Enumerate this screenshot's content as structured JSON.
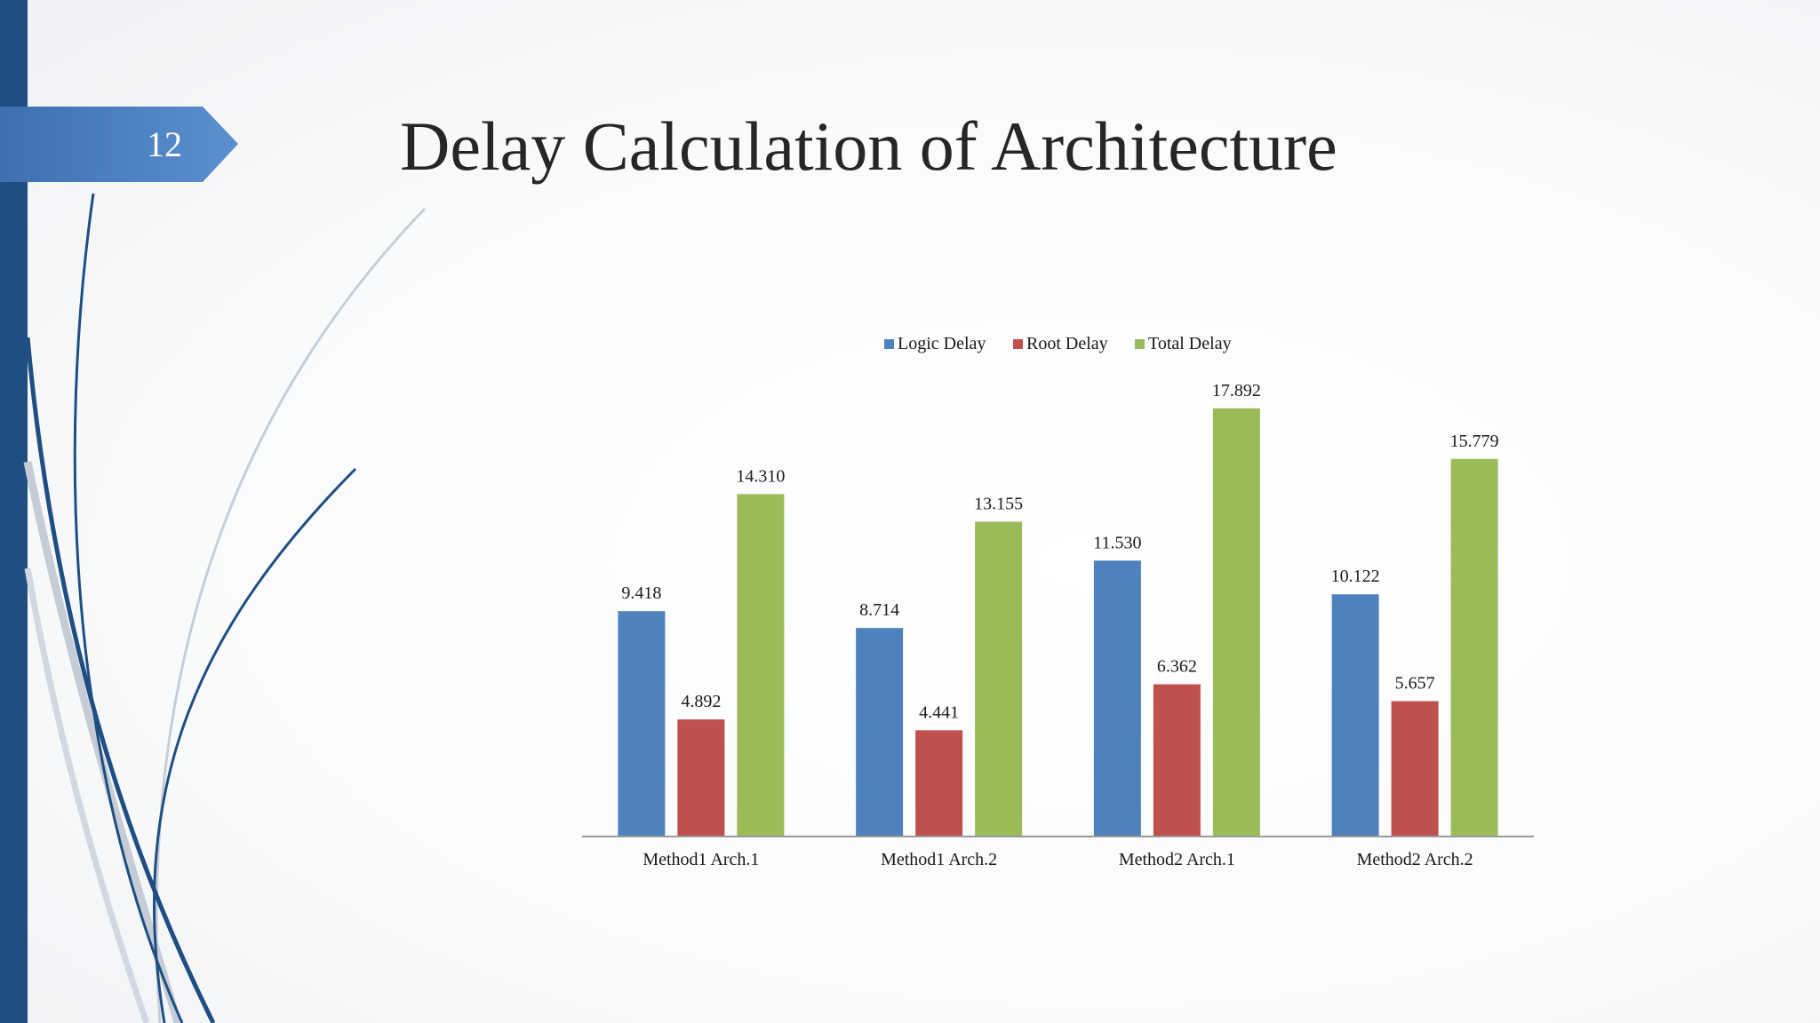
{
  "slide": {
    "number": "12",
    "title": "Delay Calculation of Architecture"
  },
  "colors": {
    "left_bar": "#1f4e82",
    "tab": "#4f81bd",
    "swoosh_dark": "#1f4e82",
    "swoosh_light": "#c5ccd6"
  },
  "chart_data": {
    "type": "bar",
    "categories": [
      "Method1 Arch.1",
      "Method1 Arch.2",
      "Method2 Arch.1",
      "Method2 Arch.2"
    ],
    "series": [
      {
        "name": "Logic Delay",
        "color": "#4f81bd",
        "values": [
          9.418,
          8.714,
          11.53,
          10.122
        ],
        "labels": [
          "9.418",
          "8.714",
          "11.530",
          "10.122"
        ]
      },
      {
        "name": "Root Delay",
        "color": "#c0504d",
        "values": [
          4.892,
          4.441,
          6.362,
          5.657
        ],
        "labels": [
          "4.892",
          "4.441",
          "6.362",
          "5.657"
        ]
      },
      {
        "name": "Total Delay",
        "color": "#9bbb59",
        "values": [
          14.31,
          13.155,
          17.892,
          15.779
        ],
        "labels": [
          "14.310",
          "13.155",
          "17.892",
          "15.779"
        ]
      }
    ],
    "ylim": [
      0,
      19
    ],
    "legend": "top",
    "grid": false,
    "data_labels": true,
    "xlabel": "",
    "ylabel": ""
  }
}
